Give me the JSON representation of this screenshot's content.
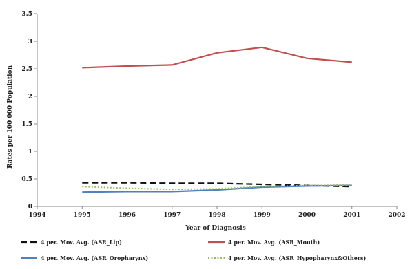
{
  "chart_data": {
    "type": "line",
    "xlabel": "Year of Diagnosis",
    "ylabel": "Rates per 100 000 Population",
    "xlim": [
      1994,
      2002
    ],
    "ylim": [
      0,
      3.5
    ],
    "x_ticks": [
      "1994",
      "1995",
      "1996",
      "1997",
      "1998",
      "1999",
      "2000",
      "2001",
      "2002"
    ],
    "y_ticks": [
      "0",
      "0.5",
      "1",
      "1.5",
      "2",
      "2.5",
      "3",
      "3.5"
    ],
    "grid": false,
    "legend_position": "bottom",
    "series": [
      {
        "name": "4 per. Mov. Avg. (ASR_Lip)",
        "color": "#111111",
        "dash": "dashed",
        "x": [
          1995,
          1996,
          1997,
          1998,
          1999,
          2000,
          2001
        ],
        "values": [
          0.43,
          0.43,
          0.42,
          0.42,
          0.4,
          0.38,
          0.36
        ]
      },
      {
        "name": "4 per. Mov. Avg. (ASR_Mouth)",
        "color": "#c0504d",
        "dash": "solid",
        "x": [
          1995,
          1996,
          1997,
          1998,
          1999,
          2000,
          2001
        ],
        "values": [
          2.52,
          2.55,
          2.57,
          2.79,
          2.89,
          2.69,
          2.62
        ]
      },
      {
        "name": "4 per. Mov. Avg. (ASR_Oropharynx)",
        "color": "#4f81bd",
        "dash": "solid",
        "x": [
          1995,
          1996,
          1997,
          1998,
          1999,
          2000,
          2001
        ],
        "values": [
          0.26,
          0.27,
          0.27,
          0.3,
          0.35,
          0.37,
          0.38
        ]
      },
      {
        "name": "4 per. Mov. Avg. (ASR_Hypopharynx&Others)",
        "color": "#9bbb59",
        "dash": "dotted",
        "x": [
          1995,
          1996,
          1997,
          1998,
          1999,
          2000,
          2001
        ],
        "values": [
          0.36,
          0.33,
          0.31,
          0.32,
          0.36,
          0.38,
          0.39
        ]
      }
    ]
  }
}
